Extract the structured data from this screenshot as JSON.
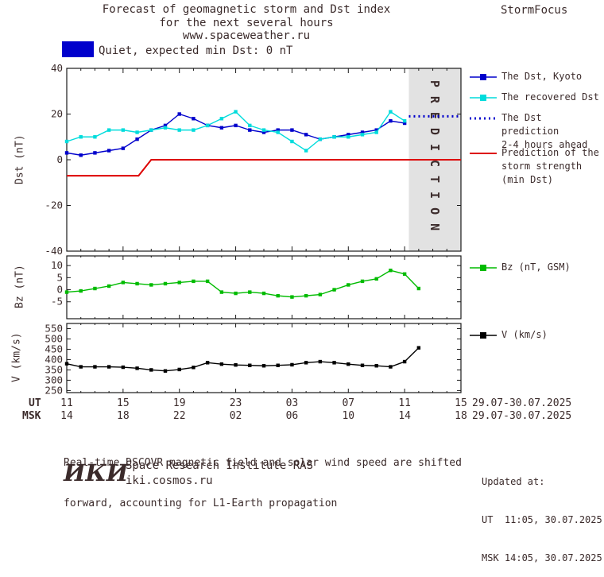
{
  "header": {
    "title_line1": "Forecast of geomagnetic storm and Dst index",
    "title_line2": "for the next several hours",
    "title_line3": "www.spaceweather.ru",
    "brand": "StormFocus"
  },
  "status_banner": {
    "label": "Quiet, expected min Dst: 0 nT",
    "swatch_color": "#0000cc"
  },
  "legend": {
    "dst_kyoto": "The Dst, Kyoto",
    "recovered": "The recovered Dst",
    "prediction_line1": "The Dst prediction",
    "prediction_line2": "2-4 hours ahead",
    "storm_line1": "Prediction of the",
    "storm_line2": "storm strength",
    "storm_line3": "(min Dst)",
    "bz": "Bz (nT, GSM)",
    "v": "V (km/s)"
  },
  "xaxis": {
    "ut_label": "UT",
    "msk_label": "MSK",
    "ut_ticks": [
      "11",
      "15",
      "19",
      "23",
      "03",
      "07",
      "11",
      "15"
    ],
    "msk_ticks": [
      "14",
      "18",
      "22",
      "02",
      "06",
      "10",
      "14",
      "18"
    ],
    "ut_daterange": "29.07-30.07.2025",
    "msk_daterange": "29.07-30.07.2025"
  },
  "chart_data": [
    {
      "type": "line",
      "panel": "dst",
      "title": "Forecast of geomagnetic storm and Dst index for the next several hours",
      "ylabel": "Dst (nT)",
      "ylim": [
        -40,
        40
      ],
      "yticks": [
        40,
        20,
        0,
        -20,
        -40
      ],
      "xlim": [
        0,
        28
      ],
      "x_unit": "hours, ticks every 4h from 11:00 UT 29.07.2025 to 15:00 UT 30.07.2025",
      "grid": false,
      "legend_position": "right",
      "prediction_band_x": [
        24.3,
        28
      ],
      "prediction_band_label": "PREDICTION",
      "series": [
        {
          "name": "The Dst, Kyoto",
          "color": "#0000cc",
          "marker": true,
          "width": 1.4,
          "x": [
            0,
            1,
            2,
            3,
            4,
            5,
            6,
            7,
            8,
            9,
            10,
            11,
            12,
            13,
            14,
            15,
            16,
            17,
            18,
            19,
            20,
            21,
            22,
            23,
            24
          ],
          "values": [
            3,
            2,
            3,
            4,
            5,
            9,
            13,
            15,
            20,
            18,
            15,
            14,
            15,
            13,
            12,
            13,
            13,
            11,
            9,
            10,
            11,
            12,
            13,
            17,
            16
          ]
        },
        {
          "name": "The recovered Dst",
          "color": "#00dcdc",
          "marker": true,
          "width": 1.4,
          "x": [
            0,
            1,
            2,
            3,
            4,
            5,
            6,
            7,
            8,
            9,
            10,
            11,
            12,
            13,
            14,
            15,
            16,
            17,
            18,
            19,
            20,
            21,
            22,
            23,
            24
          ],
          "values": [
            8,
            10,
            10,
            13,
            13,
            12,
            13,
            14,
            13,
            13,
            15,
            18,
            21,
            15,
            13,
            12,
            8,
            4,
            9,
            10,
            10,
            11,
            12,
            21,
            17
          ]
        },
        {
          "name": "The Dst prediction 2-4 hours ahead",
          "color": "#0000cc",
          "dotted": true,
          "width": 3,
          "x": [
            24.3,
            27.9
          ],
          "values": [
            19,
            19
          ]
        },
        {
          "name": "Prediction of the storm strength (min Dst)",
          "color": "#dd0000",
          "width": 2,
          "x": [
            0,
            5.1,
            6,
            28
          ],
          "values": [
            -7,
            -7,
            0,
            0
          ]
        }
      ]
    },
    {
      "type": "line",
      "panel": "bz",
      "ylabel": "Bz (nT)",
      "ylim": [
        -12,
        14
      ],
      "yticks": [
        10,
        5,
        0,
        -5
      ],
      "xlim": [
        0,
        28
      ],
      "grid": false,
      "series": [
        {
          "name": "Bz (nT, GSM)",
          "color": "#00bb00",
          "marker": true,
          "width": 1.4,
          "x": [
            0,
            1,
            2,
            3,
            4,
            5,
            6,
            7,
            8,
            9,
            10,
            11,
            12,
            13,
            14,
            15,
            16,
            17,
            18,
            19,
            20,
            21,
            22,
            23,
            24,
            25
          ],
          "values": [
            -1,
            -0.5,
            0.5,
            1.5,
            3,
            2.5,
            2,
            2.5,
            3,
            3.5,
            3.5,
            -1,
            -1.5,
            -1,
            -1.5,
            -2.5,
            -3,
            -2.5,
            -2,
            0,
            2,
            3.5,
            4.5,
            8,
            6.5,
            0.5
          ]
        }
      ]
    },
    {
      "type": "line",
      "panel": "v",
      "ylabel": "V (km/s)",
      "ylim": [
        240,
        575
      ],
      "yticks": [
        550,
        500,
        450,
        400,
        350,
        300,
        250
      ],
      "xlim": [
        0,
        28
      ],
      "grid": false,
      "series": [
        {
          "name": "V (km/s)",
          "color": "#000000",
          "marker": true,
          "width": 1.4,
          "x": [
            0,
            1,
            2,
            3,
            4,
            5,
            6,
            7,
            8,
            9,
            10,
            11,
            12,
            13,
            14,
            15,
            16,
            17,
            18,
            19,
            20,
            21,
            22,
            23,
            24,
            25
          ],
          "values": [
            380,
            365,
            365,
            365,
            363,
            358,
            350,
            345,
            352,
            362,
            385,
            378,
            374,
            372,
            370,
            372,
            375,
            385,
            390,
            385,
            378,
            372,
            370,
            365,
            390,
            457
          ]
        }
      ]
    }
  ],
  "footer": {
    "note_line1": "Real-time DSCOVR magnetic field and solar wind speed are shifted",
    "note_line2": "forward, accounting for L1-Earth propagation",
    "logo_text": "ИКИ",
    "institute": "Space Research Institute RAS",
    "site": "iki.cosmos.ru"
  },
  "updated": {
    "label": "Updated at:",
    "ut": "UT  11:05, 30.07.2025",
    "msk": "MSK 14:05, 30.07.2025"
  },
  "colors": {
    "dst_kyoto": "#0000cc",
    "recovered_dst": "#00dcdc",
    "prediction": "#0000cc",
    "storm_strength": "#dd0000",
    "bz": "#00bb00",
    "v": "#000000",
    "prediction_band": "#e2e2e2",
    "prediction_label": "#b0b0b0"
  }
}
